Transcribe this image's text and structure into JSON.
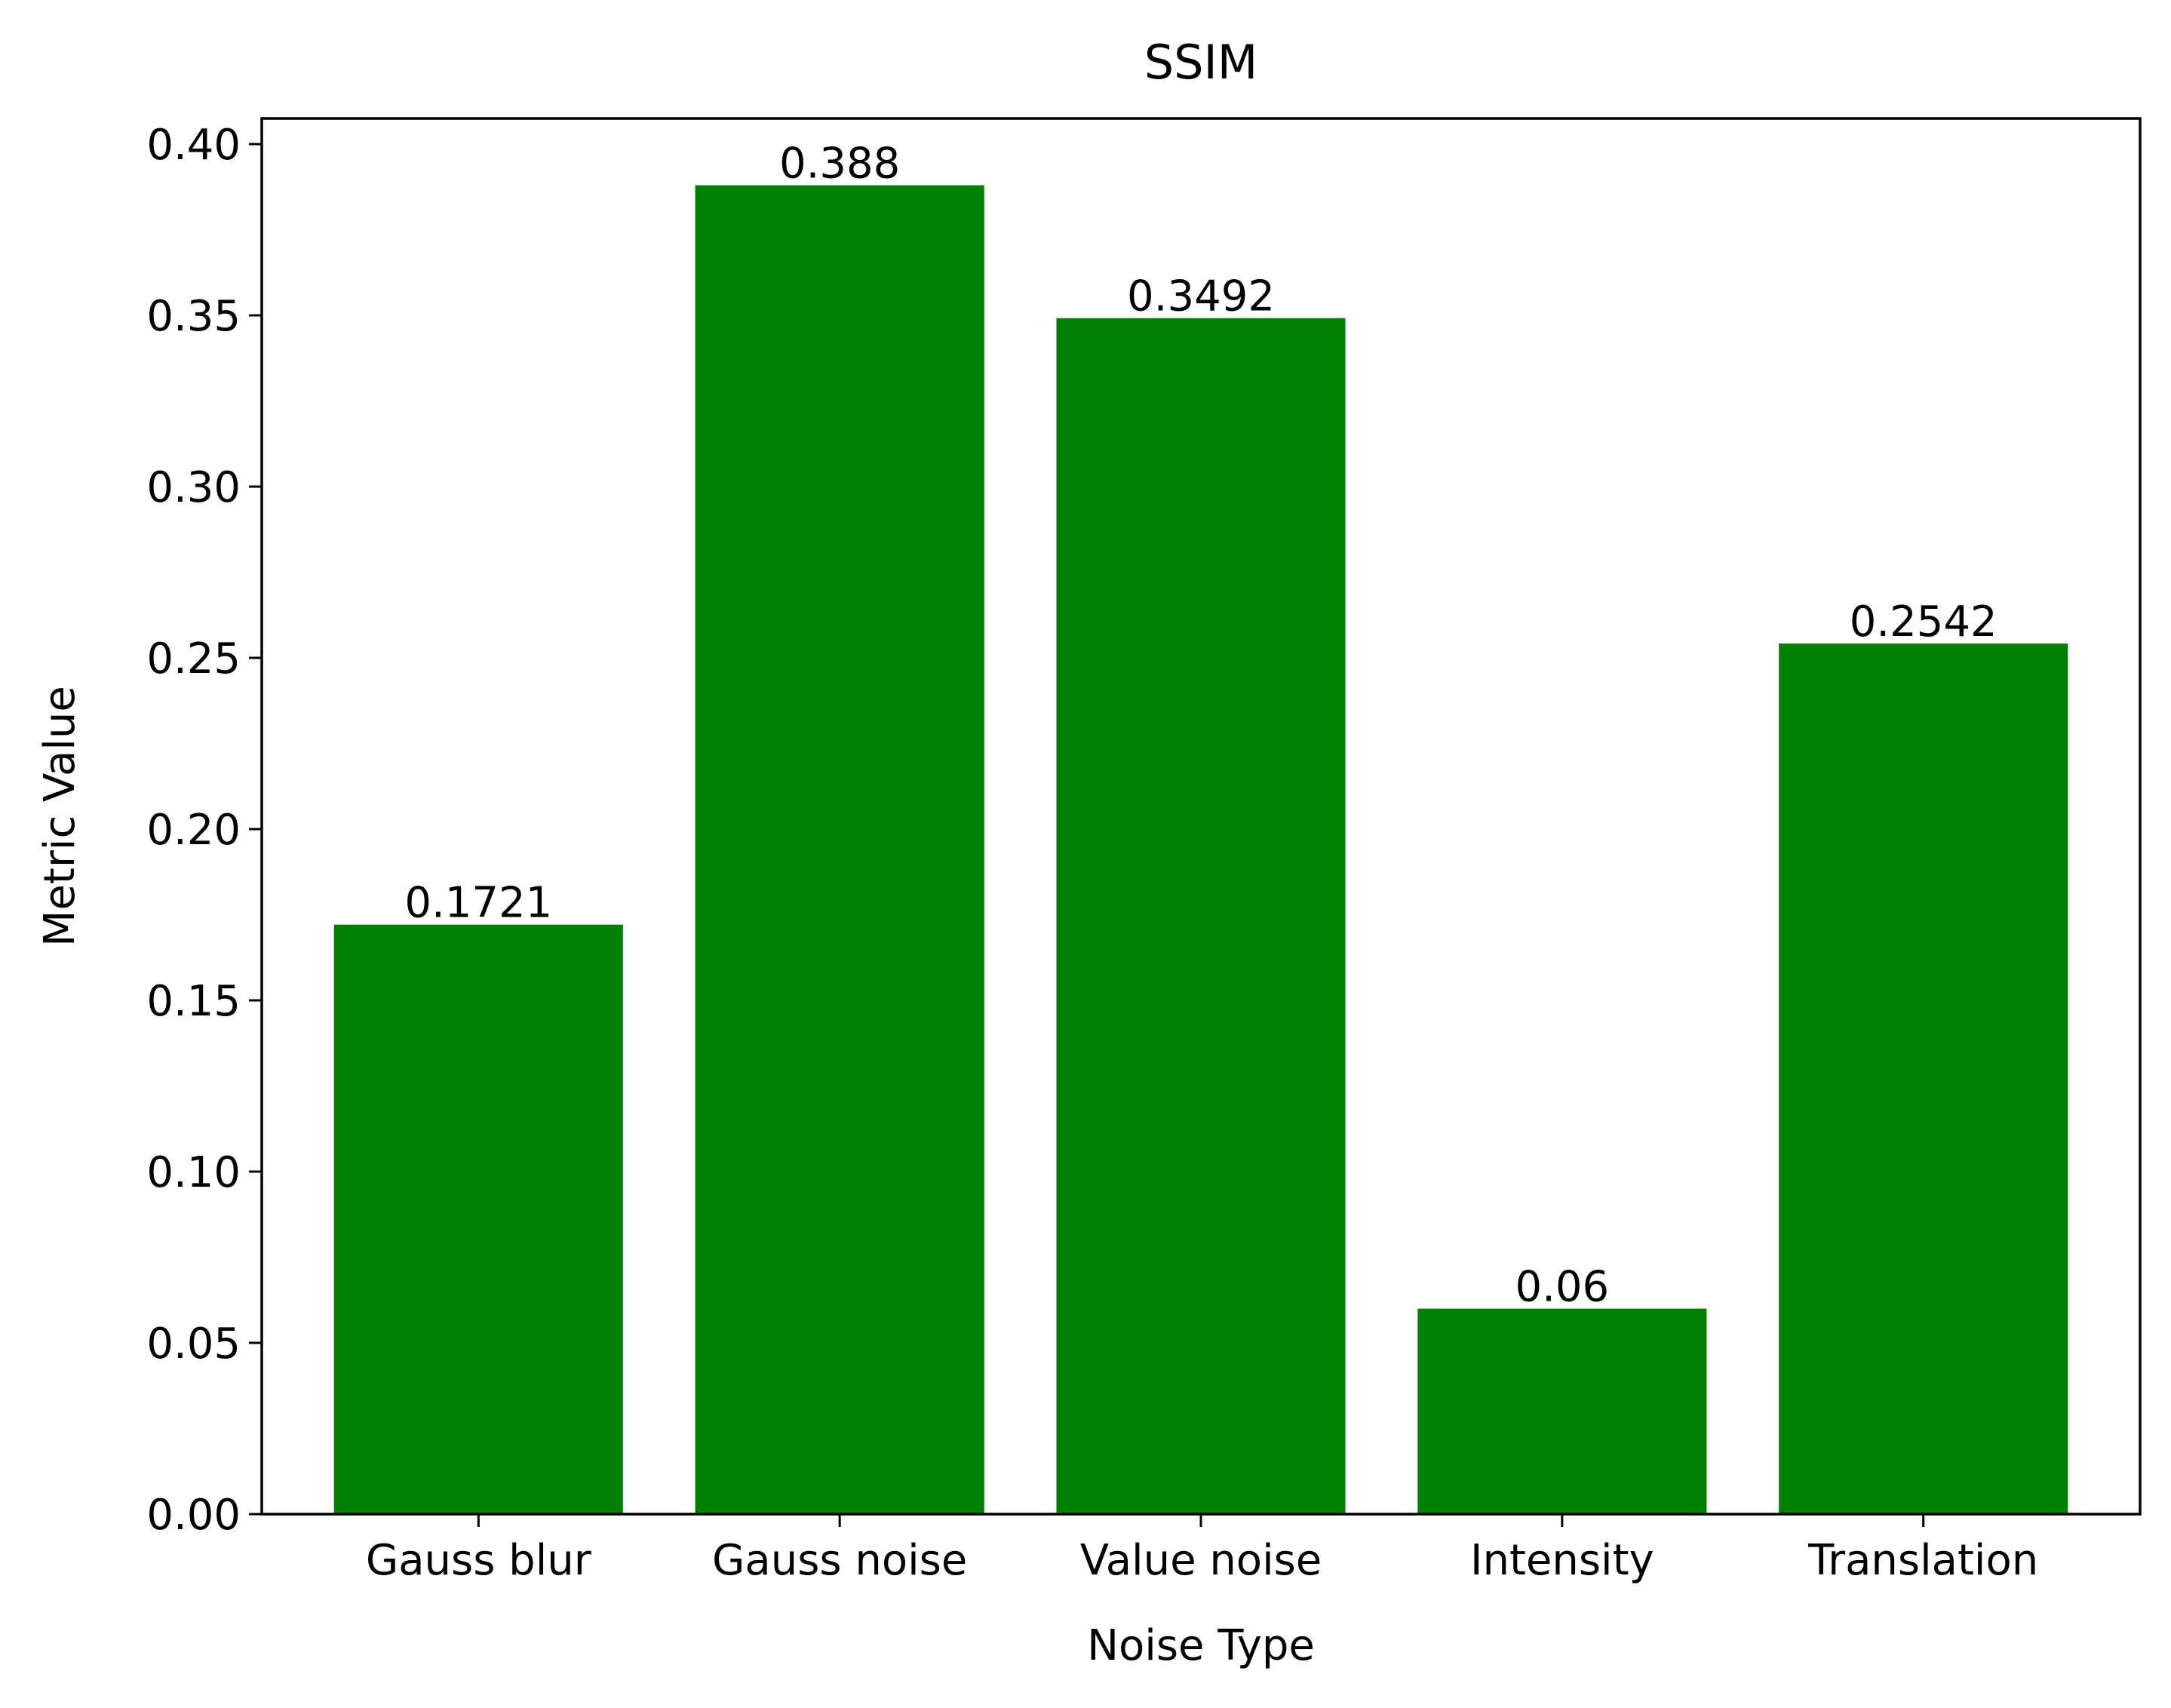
{
  "chart_data": {
    "type": "bar",
    "title": "SSIM",
    "xlabel": "Noise Type",
    "ylabel": "Metric Value",
    "categories": [
      "Gauss blur",
      "Gauss noise",
      "Value noise",
      "Intensity",
      "Translation"
    ],
    "values": [
      0.1721,
      0.388,
      0.3492,
      0.06,
      0.2542
    ],
    "value_labels": [
      "0.1721",
      "0.388",
      "0.3492",
      "0.06",
      "0.2542"
    ],
    "ylim": [
      0,
      0.4075
    ],
    "yticks": [
      0.0,
      0.05,
      0.1,
      0.15,
      0.2,
      0.25,
      0.3,
      0.35,
      0.4
    ],
    "ytick_labels": [
      "0.00",
      "0.05",
      "0.10",
      "0.15",
      "0.20",
      "0.25",
      "0.30",
      "0.35",
      "0.40"
    ],
    "bar_color": "#008000",
    "grid": false,
    "legend": "none"
  }
}
